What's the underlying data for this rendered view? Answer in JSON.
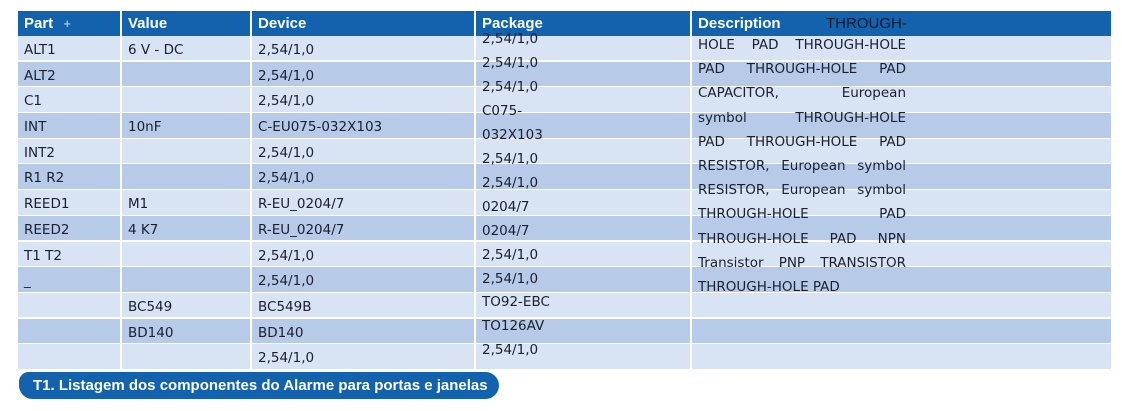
{
  "headers": {
    "part": "Part",
    "value": "Value",
    "device": "Device",
    "package": "Package",
    "description": "Description"
  },
  "sort_icon": "+",
  "rows": [
    {
      "part": "ALT1",
      "value": "6 V - DC",
      "device": "2,54/1,0"
    },
    {
      "part": "ALT2",
      "value": "",
      "device": "2,54/1,0"
    },
    {
      "part": "C1",
      "value": "",
      "device": "2,54/1,0"
    },
    {
      "part": "INT",
      "value": "10nF",
      "device": "C-EU075-032X103"
    },
    {
      "part": "INT2",
      "value": "",
      "device": "2,54/1,0"
    },
    {
      "part": "R1  R2",
      "value": "",
      "device": "2,54/1,0"
    },
    {
      "part": "REED1",
      "value": "M1",
      "device": "R-EU_0204/7"
    },
    {
      "part": "REED2",
      "value": "4 K7",
      "device": "R-EU_0204/7"
    },
    {
      "part": "T1  T2",
      "value": "",
      "device": "2,54/1,0"
    },
    {
      "part": "_",
      "value": "",
      "device": "2,54/1,0"
    },
    {
      "part": "",
      "value": "BC549",
      "device": "BC549B"
    },
    {
      "part": "",
      "value": "BD140",
      "device": "BD140"
    },
    {
      "part": "",
      "value": "",
      "device": "2,54/1,0"
    }
  ],
  "package_lines": [
    "2,54/1,0",
    "2,54/1,0",
    "2,54/1,0",
    "C075-",
    "032X103",
    "2,54/1,0",
    "2,54/1,0",
    "0204/7",
    "0204/7",
    "2,54/1,0",
    "2,54/1,0",
    "TO92-EBC",
    "TO126AV",
    "2,54/1,0"
  ],
  "description_header_tail": "THROUGH-",
  "description_lines": [
    "HOLE PAD THROUGH-HOLE",
    "PAD THROUGH-HOLE PAD",
    "CAPACITOR, European",
    "symbol THROUGH-HOLE",
    "PAD THROUGH-HOLE PAD",
    "RESISTOR, European symbol",
    "RESISTOR, European symbol",
    "THROUGH-HOLE PAD",
    "THROUGH-HOLE PAD NPN",
    "Transistor PNP TRANSISTOR",
    "THROUGH-HOLE PAD"
  ],
  "caption": "T1. Listagem dos componentes do Alarme para portas e janelas",
  "colors": {
    "header": "#1262ad",
    "band_light": "#d8e3f3",
    "band_dark": "#b7cbe9"
  }
}
